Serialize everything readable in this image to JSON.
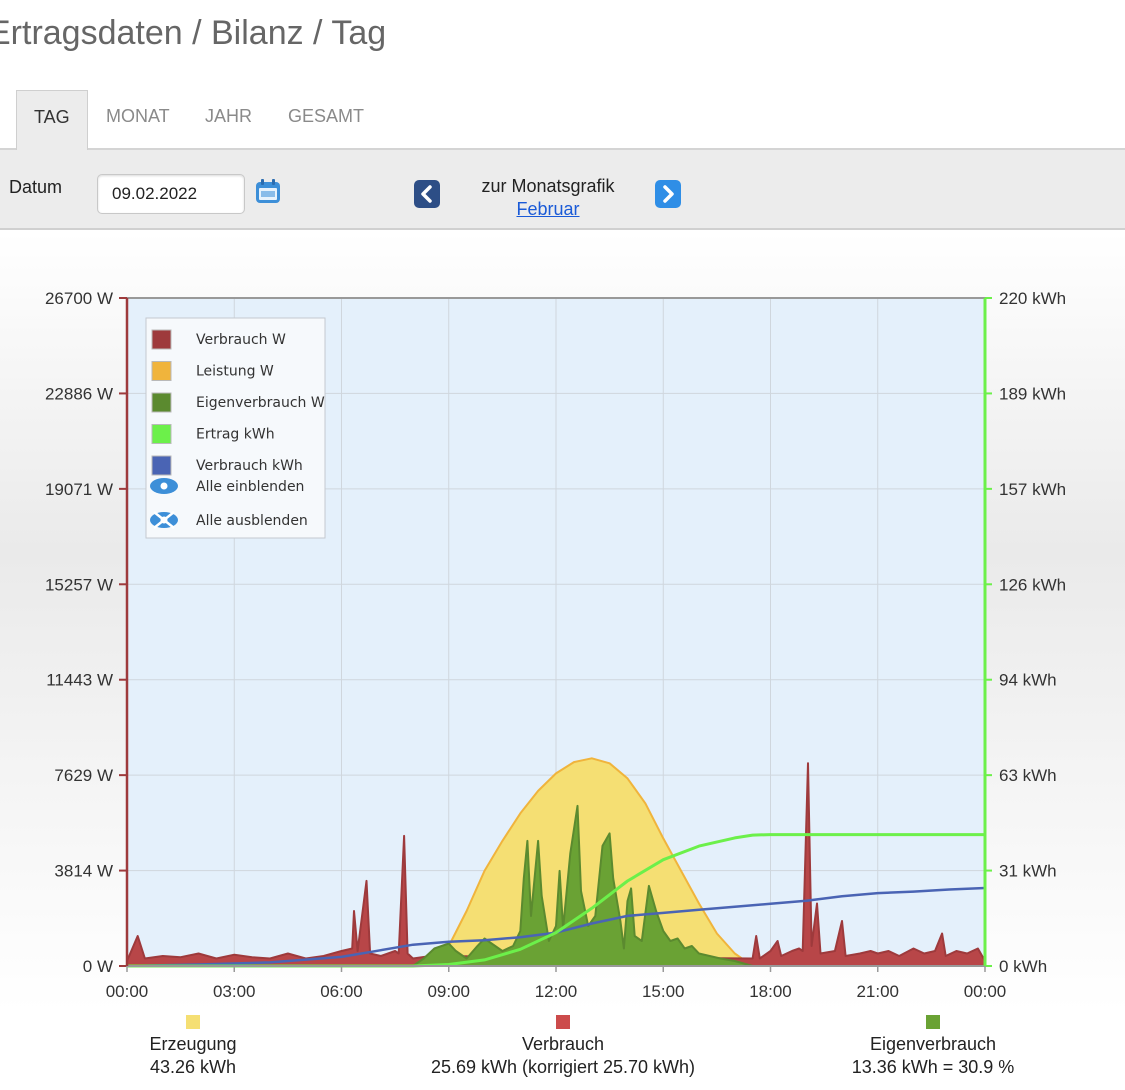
{
  "page_title": "Ertragsdaten / Bilanz / Tag",
  "tabs": [
    {
      "label": "TAG",
      "active": true
    },
    {
      "label": "MONAT",
      "active": false
    },
    {
      "label": "JAHR",
      "active": false
    },
    {
      "label": "GESAMT",
      "active": false
    }
  ],
  "controls": {
    "datum_label": "Datum",
    "date_value": "09.02.2022",
    "month_nav_label": "zur Monatsgrafik",
    "month_link": "Februar"
  },
  "colors": {
    "verbrauch_w": "#9e3a3c",
    "verbrauch_fill": "#b84648",
    "leistung_w": "#f0b43c",
    "leistung_fill": "#f5df73",
    "eigenverbrauch_w": "#5b8a2f",
    "eigenverbrauch_fill": "#6aa234",
    "ertrag_kwh": "#6cf04a",
    "verbrauch_kwh": "#4a64b4",
    "plot_bg": "#e4f0fb"
  },
  "chart_data": {
    "type": "area",
    "x_ticks": [
      "00:00",
      "03:00",
      "06:00",
      "09:00",
      "12:00",
      "15:00",
      "18:00",
      "21:00",
      "00:00"
    ],
    "x_range_hours": [
      0,
      24
    ],
    "y_left": {
      "unit": "W",
      "range": [
        0,
        26700
      ],
      "ticks": [
        "0 W",
        "3814 W",
        "7629 W",
        "11443 W",
        "15257 W",
        "19071 W",
        "22886 W",
        "26700 W"
      ]
    },
    "y_right": {
      "unit": "kWh",
      "range": [
        0,
        220
      ],
      "ticks": [
        "0 kWh",
        "31 kWh",
        "63 kWh",
        "94 kWh",
        "126 kWh",
        "157 kWh",
        "189 kWh",
        "220 kWh"
      ]
    },
    "grid": true,
    "legend_position": "top-left",
    "legend": [
      {
        "label": "Verbrauch W",
        "color_key": "verbrauch_w"
      },
      {
        "label": "Leistung W",
        "color_key": "leistung_w"
      },
      {
        "label": "Eigenverbrauch W",
        "color_key": "eigenverbrauch_w"
      },
      {
        "label": "Ertrag kWh",
        "color_key": "ertrag_kwh"
      },
      {
        "label": "Verbrauch kWh",
        "color_key": "verbrauch_kwh"
      }
    ],
    "legend_actions": [
      {
        "label": "Alle einblenden",
        "icon": "eye-icon"
      },
      {
        "label": "Alle ausblenden",
        "icon": "eye-crossed-icon"
      }
    ],
    "series": [
      {
        "name": "Leistung W",
        "axis": "left",
        "points": [
          [
            8.0,
            0
          ],
          [
            8.5,
            200
          ],
          [
            9.0,
            800
          ],
          [
            9.5,
            2200
          ],
          [
            10.0,
            3800
          ],
          [
            10.5,
            5000
          ],
          [
            11.0,
            6100
          ],
          [
            11.5,
            7000
          ],
          [
            12.0,
            7700
          ],
          [
            12.5,
            8150
          ],
          [
            13.0,
            8300
          ],
          [
            13.5,
            8100
          ],
          [
            14.0,
            7500
          ],
          [
            14.5,
            6500
          ],
          [
            15.0,
            5100
          ],
          [
            15.5,
            3800
          ],
          [
            16.0,
            2500
          ],
          [
            16.5,
            1300
          ],
          [
            17.0,
            500
          ],
          [
            17.5,
            0
          ]
        ]
      },
      {
        "name": "Eigenverbrauch W",
        "axis": "left",
        "points": [
          [
            8.0,
            0
          ],
          [
            8.3,
            300
          ],
          [
            8.6,
            700
          ],
          [
            9.0,
            900
          ],
          [
            9.2,
            600
          ],
          [
            9.5,
            300
          ],
          [
            9.8,
            800
          ],
          [
            10.0,
            1100
          ],
          [
            10.2,
            900
          ],
          [
            10.5,
            600
          ],
          [
            10.8,
            800
          ],
          [
            11.0,
            1400
          ],
          [
            11.1,
            3500
          ],
          [
            11.2,
            5000
          ],
          [
            11.3,
            2000
          ],
          [
            11.5,
            5000
          ],
          [
            11.6,
            2800
          ],
          [
            11.8,
            1000
          ],
          [
            12.0,
            1600
          ],
          [
            12.1,
            3800
          ],
          [
            12.2,
            1500
          ],
          [
            12.4,
            4500
          ],
          [
            12.6,
            6400
          ],
          [
            12.7,
            3000
          ],
          [
            12.9,
            1600
          ],
          [
            13.1,
            2000
          ],
          [
            13.3,
            4800
          ],
          [
            13.5,
            5300
          ],
          [
            13.6,
            3500
          ],
          [
            13.8,
            1800
          ],
          [
            13.9,
            700
          ],
          [
            14.0,
            2600
          ],
          [
            14.1,
            3100
          ],
          [
            14.2,
            1200
          ],
          [
            14.4,
            1000
          ],
          [
            14.6,
            3200
          ],
          [
            14.8,
            2200
          ],
          [
            15.0,
            1400
          ],
          [
            15.2,
            1000
          ],
          [
            15.4,
            1100
          ],
          [
            15.6,
            700
          ],
          [
            15.8,
            800
          ],
          [
            16.0,
            500
          ],
          [
            16.3,
            400
          ],
          [
            16.6,
            300
          ],
          [
            17.0,
            200
          ],
          [
            17.5,
            0
          ]
        ]
      },
      {
        "name": "Verbrauch W",
        "axis": "left",
        "points": [
          [
            0.0,
            200
          ],
          [
            0.3,
            1200
          ],
          [
            0.5,
            300
          ],
          [
            1.0,
            400
          ],
          [
            1.5,
            350
          ],
          [
            2.0,
            500
          ],
          [
            2.5,
            300
          ],
          [
            3.0,
            450
          ],
          [
            3.5,
            350
          ],
          [
            4.0,
            300
          ],
          [
            4.5,
            500
          ],
          [
            5.0,
            300
          ],
          [
            5.5,
            400
          ],
          [
            6.0,
            600
          ],
          [
            6.3,
            700
          ],
          [
            6.35,
            2200
          ],
          [
            6.45,
            600
          ],
          [
            6.7,
            3400
          ],
          [
            6.8,
            500
          ],
          [
            7.1,
            400
          ],
          [
            7.5,
            600
          ],
          [
            7.6,
            500
          ],
          [
            7.75,
            5200
          ],
          [
            7.85,
            500
          ],
          [
            8.0,
            300
          ],
          [
            8.5,
            400
          ],
          [
            17.5,
            300
          ],
          [
            17.6,
            1200
          ],
          [
            17.7,
            300
          ],
          [
            18.0,
            600
          ],
          [
            18.2,
            1000
          ],
          [
            18.3,
            400
          ],
          [
            18.6,
            600
          ],
          [
            18.8,
            700
          ],
          [
            18.9,
            600
          ],
          [
            19.05,
            8100
          ],
          [
            19.15,
            800
          ],
          [
            19.3,
            2500
          ],
          [
            19.4,
            500
          ],
          [
            19.8,
            600
          ],
          [
            20.0,
            1800
          ],
          [
            20.1,
            400
          ],
          [
            20.5,
            500
          ],
          [
            20.8,
            600
          ],
          [
            21.0,
            500
          ],
          [
            21.3,
            600
          ],
          [
            21.6,
            400
          ],
          [
            22.0,
            700
          ],
          [
            22.3,
            500
          ],
          [
            22.6,
            600
          ],
          [
            22.8,
            1300
          ],
          [
            22.9,
            400
          ],
          [
            23.2,
            600
          ],
          [
            23.5,
            500
          ],
          [
            23.8,
            700
          ],
          [
            24.0,
            200
          ]
        ]
      },
      {
        "name": "Verbrauch kWh",
        "axis": "right",
        "points": [
          [
            0,
            0
          ],
          [
            2,
            0.5
          ],
          [
            4,
            1.2
          ],
          [
            6,
            3
          ],
          [
            7,
            5
          ],
          [
            8,
            7
          ],
          [
            9,
            8
          ],
          [
            10,
            8.5
          ],
          [
            11,
            9.5
          ],
          [
            12,
            11
          ],
          [
            13,
            14
          ],
          [
            14,
            16.5
          ],
          [
            15,
            17.5
          ],
          [
            16,
            18.5
          ],
          [
            17,
            19.5
          ],
          [
            18,
            20.5
          ],
          [
            19,
            21.5
          ],
          [
            20,
            23
          ],
          [
            21,
            24
          ],
          [
            22,
            24.5
          ],
          [
            23,
            25.2
          ],
          [
            24,
            25.69
          ]
        ]
      },
      {
        "name": "Ertrag kWh",
        "axis": "right",
        "points": [
          [
            0,
            0
          ],
          [
            8,
            0
          ],
          [
            9,
            0.5
          ],
          [
            10,
            2
          ],
          [
            11,
            5.5
          ],
          [
            12,
            11
          ],
          [
            13,
            19
          ],
          [
            14,
            28
          ],
          [
            15,
            35
          ],
          [
            16,
            39.5
          ],
          [
            17,
            42.2
          ],
          [
            17.5,
            43.1
          ],
          [
            18,
            43.26
          ],
          [
            24,
            43.26
          ]
        ]
      }
    ]
  },
  "summary": [
    {
      "label": "Erzeugung",
      "value": "43.26 kWh",
      "color": "#f5df73"
    },
    {
      "label": "Verbrauch",
      "value": "25.69 kWh (korrigiert 25.70 kWh)",
      "color": "#cc4b4b"
    },
    {
      "label": "Eigenverbrauch",
      "value": "13.36 kWh = 30.9 %",
      "color": "#6aa234"
    }
  ]
}
